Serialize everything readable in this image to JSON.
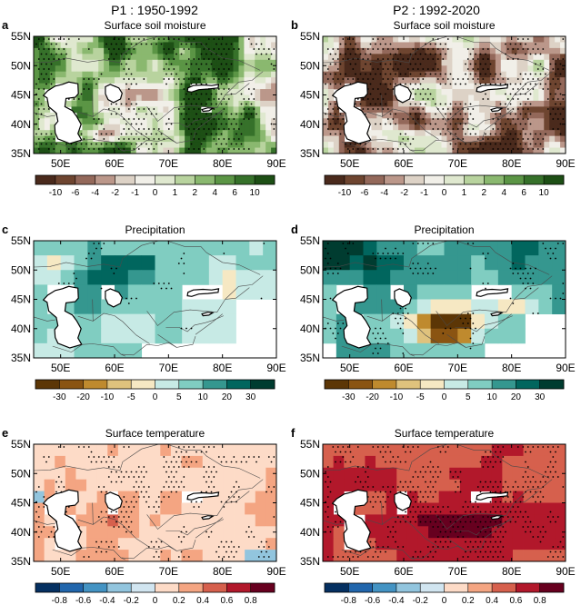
{
  "column_titles": [
    "P1 : 1950-1992",
    "P2 : 1992-2020"
  ],
  "chart_data": [
    {
      "type": "heatmap",
      "panel": "a",
      "title": "Surface soil moisture",
      "x": {
        "ticks": [
          50,
          60,
          70,
          80,
          90
        ],
        "tick_labels": [
          "50E",
          "60E",
          "70E",
          "80E",
          "90E"
        ],
        "range": [
          45,
          90
        ]
      },
      "y": {
        "ticks": [
          35,
          40,
          45,
          50,
          55
        ],
        "tick_labels": [
          "35N",
          "40N",
          "45N",
          "50N",
          "55N"
        ],
        "range": [
          35,
          55
        ]
      },
      "colorbar": {
        "labels": [
          "-10",
          "-6",
          "-4",
          "-2",
          "-1",
          "0",
          "1",
          "2",
          "4",
          "6",
          "10"
        ],
        "colors": [
          "#4a2a1c",
          "#6e4530",
          "#93685a",
          "#bb978a",
          "#ddd2c6",
          "#f1efe8",
          "#dfe8cf",
          "#b8d39e",
          "#8ab86f",
          "#5b9545",
          "#36712a",
          "#1d4f15"
        ]
      },
      "pattern": {
        "mode": "soil",
        "bias": 0.4,
        "seed": 11,
        "res": 1.0
      },
      "stipple_density": 0.5
    },
    {
      "type": "heatmap",
      "panel": "b",
      "title": "Surface soil moisture",
      "x": {
        "ticks": [
          50,
          60,
          70,
          80,
          90
        ],
        "tick_labels": [
          "50E",
          "60E",
          "70E",
          "80E",
          "90E"
        ],
        "range": [
          45,
          90
        ]
      },
      "y": {
        "ticks": [
          35,
          40,
          45,
          50,
          55
        ],
        "tick_labels": [
          "35N",
          "40N",
          "45N",
          "50N",
          "55N"
        ],
        "range": [
          35,
          55
        ]
      },
      "colorbar": {
        "labels": [
          "-10",
          "-6",
          "-4",
          "-2",
          "-1",
          "0",
          "1",
          "2",
          "4",
          "6",
          "10"
        ],
        "colors": [
          "#4a2a1c",
          "#6e4530",
          "#93685a",
          "#bb978a",
          "#ddd2c6",
          "#f1efe8",
          "#dfe8cf",
          "#b8d39e",
          "#8ab86f",
          "#5b9545",
          "#36712a",
          "#1d4f15"
        ]
      },
      "pattern": {
        "mode": "soil",
        "bias": -0.55,
        "seed": 23,
        "res": 1.0
      },
      "stipple_density": 0.6
    },
    {
      "type": "heatmap",
      "panel": "c",
      "title": "Precipitation",
      "x": {
        "ticks": [
          50,
          60,
          70,
          80,
          90
        ],
        "tick_labels": [
          "50E",
          "60E",
          "70E",
          "80E",
          "90E"
        ],
        "range": [
          45,
          90
        ]
      },
      "y": {
        "ticks": [
          35,
          40,
          45,
          50,
          55
        ],
        "tick_labels": [
          "35N",
          "40N",
          "45N",
          "50N",
          "55N"
        ],
        "range": [
          35,
          55
        ]
      },
      "colorbar": {
        "labels": [
          "-30",
          "-20",
          "-10",
          "-5",
          "0",
          "5",
          "10",
          "20",
          "30"
        ],
        "colors": [
          "#5c3606",
          "#8a5412",
          "#bf8a2e",
          "#dfc27d",
          "#f6e8c3",
          "#c7eae5",
          "#80cdc1",
          "#35978f",
          "#01665e",
          "#003c30"
        ]
      },
      "pattern": {
        "mode": "precip1",
        "seed": 37,
        "res": 2.5
      },
      "stipple_density": 0.18
    },
    {
      "type": "heatmap",
      "panel": "d",
      "title": "Precipitation",
      "x": {
        "ticks": [
          50,
          60,
          70,
          80,
          90
        ],
        "tick_labels": [
          "50E",
          "60E",
          "70E",
          "80E",
          "90E"
        ],
        "range": [
          45,
          90
        ]
      },
      "y": {
        "ticks": [
          35,
          40,
          45,
          50,
          55
        ],
        "tick_labels": [
          "35N",
          "40N",
          "45N",
          "50N",
          "55N"
        ],
        "range": [
          35,
          55
        ]
      },
      "colorbar": {
        "labels": [
          "-30",
          "-20",
          "-10",
          "-5",
          "0",
          "5",
          "10",
          "20",
          "30"
        ],
        "colors": [
          "#5c3606",
          "#8a5412",
          "#bf8a2e",
          "#dfc27d",
          "#f6e8c3",
          "#c7eae5",
          "#80cdc1",
          "#35978f",
          "#01665e",
          "#003c30"
        ]
      },
      "pattern": {
        "mode": "precip2",
        "seed": 41,
        "res": 2.5
      },
      "stipple_density": 0.3
    },
    {
      "type": "heatmap",
      "panel": "e",
      "title": "Surface temperature",
      "x": {
        "ticks": [
          50,
          60,
          70,
          80,
          90
        ],
        "tick_labels": [
          "50E",
          "60E",
          "70E",
          "80E",
          "90E"
        ],
        "range": [
          45,
          90
        ]
      },
      "y": {
        "ticks": [
          35,
          40,
          45,
          50,
          55
        ],
        "tick_labels": [
          "35N",
          "40N",
          "45N",
          "50N",
          "55N"
        ],
        "range": [
          35,
          55
        ]
      },
      "colorbar": {
        "labels": [
          "-0.8",
          "-0.6",
          "-0.4",
          "-0.2",
          "0",
          "0.2",
          "0.4",
          "0.6",
          "0.8"
        ],
        "colors": [
          "#053061",
          "#2166ac",
          "#4393c3",
          "#92c5de",
          "#d1e5f0",
          "#fddbc7",
          "#f4a582",
          "#d6604d",
          "#b2182b",
          "#67001f"
        ]
      },
      "pattern": {
        "mode": "temp1",
        "seed": 53,
        "res": 2.0
      },
      "stipple_density": 0.55
    },
    {
      "type": "heatmap",
      "panel": "f",
      "title": "Surface temperature",
      "x": {
        "ticks": [
          50,
          60,
          70,
          80,
          90
        ],
        "tick_labels": [
          "50E",
          "60E",
          "70E",
          "80E",
          "90E"
        ],
        "range": [
          45,
          90
        ]
      },
      "y": {
        "ticks": [
          35,
          40,
          45,
          50,
          55
        ],
        "tick_labels": [
          "35N",
          "40N",
          "45N",
          "50N",
          "55N"
        ],
        "range": [
          35,
          55
        ]
      },
      "colorbar": {
        "labels": [
          "-0.8",
          "-0.6",
          "-0.4",
          "-0.2",
          "0",
          "0.2",
          "0.4",
          "0.6",
          "0.8"
        ],
        "colors": [
          "#053061",
          "#2166ac",
          "#4393c3",
          "#92c5de",
          "#d1e5f0",
          "#fddbc7",
          "#f4a582",
          "#d6604d",
          "#b2182b",
          "#67001f"
        ]
      },
      "pattern": {
        "mode": "temp2",
        "seed": 67,
        "res": 2.0
      },
      "stipple_density": 0.45
    }
  ]
}
